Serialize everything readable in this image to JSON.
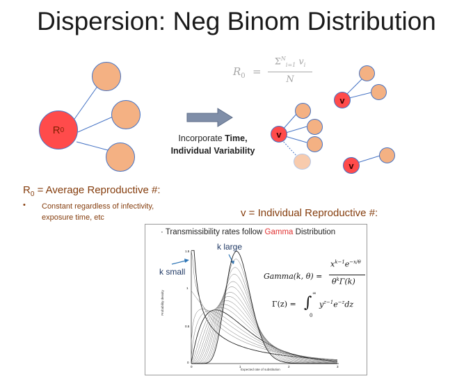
{
  "title": "Dispersion: Neg Binom Distribution",
  "left_diagram": {
    "center_label": "R",
    "center_sub": "0"
  },
  "formula": {
    "lhs": "R",
    "lhs_sub": "0",
    "eq": "=",
    "num_sigma": "Σ",
    "num_upper": "N",
    "num_lower": "i=1",
    "num_term": "v",
    "num_term_sub": "i",
    "den": "N"
  },
  "arrow_text": {
    "prefix": "Incorporate ",
    "bold1": "Time,",
    "bold2": "Individual Variability"
  },
  "v_label": "v",
  "r0_def": {
    "r": "R",
    "sub": "0",
    "text": " = Average Reproductive #:",
    "bullet": "•",
    "bullet_text_1": "Constant regardless of infectivity,",
    "bullet_text_2": "exposure time, etc"
  },
  "v_def": "v = Individual Reproductive #:",
  "panel": {
    "caption_prefix": "· Transmissibility rates follow ",
    "caption_highlight": "Gamma",
    "caption_suffix": " Distribution",
    "k_large": "k large",
    "k_small": "k small",
    "gamma_lhs": "Gamma(k, θ) =",
    "gamma_num": "x",
    "gamma_num_exp": "k−1",
    "gamma_num_e": "e",
    "gamma_num_e_exp": "−x/θ",
    "gamma_den": "θ",
    "gamma_den_exp": "k",
    "gamma_den_rest": "Γ(k)",
    "Gamma_lhs": "Γ(z) =",
    "integral": "∫",
    "int_upper": "∞",
    "int_lower": "0",
    "integrand": "y",
    "integrand_exp": "z−1",
    "integrand_e": "e",
    "integrand_e_exp": "−z",
    "integrand_dz": "dz",
    "ylabel": "Probability density",
    "xlabel": "Expected rate of substitution",
    "yticks": [
      "1.5",
      "1",
      "0.5",
      "0"
    ],
    "xticks": [
      "0",
      "1",
      "2",
      "3"
    ]
  },
  "colors": {
    "peach": "#f4b183",
    "red": "#ff4b4b",
    "edge": "#4472c4",
    "brown": "#843c0c",
    "highlight": "#e03030",
    "arrow": "#7f8ea8"
  }
}
